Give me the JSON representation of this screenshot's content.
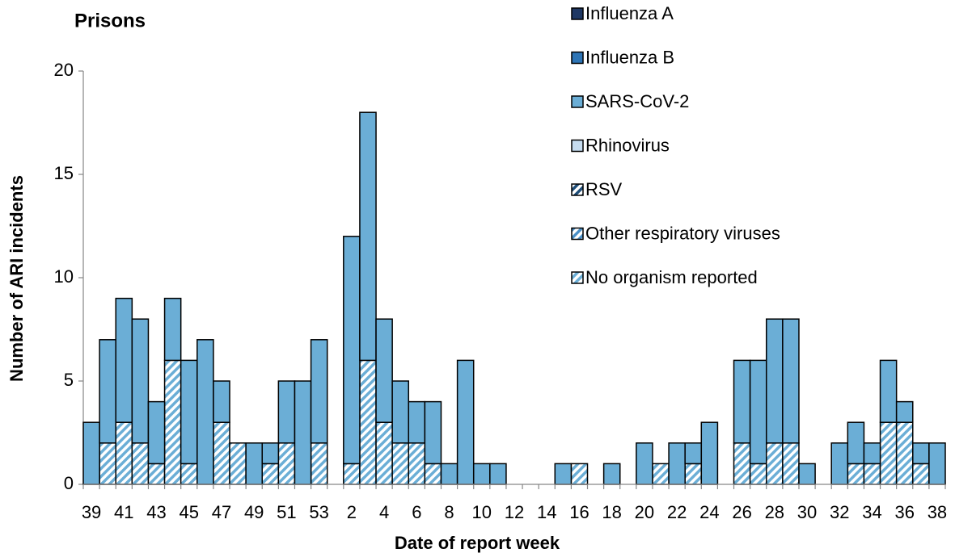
{
  "chart_data": {
    "type": "bar",
    "stacked": true,
    "title": "Prisons",
    "x_label": "Date of report week",
    "y_label": "Number of ARI incidents",
    "categories": [
      "39",
      null,
      "41",
      null,
      "43",
      null,
      "45",
      null,
      "47",
      null,
      "49",
      null,
      "51",
      null,
      "53",
      null,
      "2",
      null,
      "4",
      null,
      "6",
      null,
      "8",
      null,
      "10",
      null,
      "12",
      null,
      "14",
      null,
      "16",
      null,
      "18",
      null,
      "20",
      null,
      "22",
      null,
      "24",
      null,
      "26",
      null,
      "28",
      null,
      "30",
      null,
      "32",
      null,
      "34",
      null,
      "36",
      null,
      "38"
    ],
    "series": [
      {
        "name": "No organism reported",
        "color": "#6baed6",
        "pattern": "hatch",
        "values": [
          0,
          2,
          3,
          2,
          1,
          6,
          1,
          0,
          3,
          2,
          0,
          1,
          2,
          0,
          2,
          0,
          1,
          6,
          3,
          2,
          2,
          1,
          0,
          0,
          0,
          0,
          0,
          0,
          0,
          0,
          1,
          0,
          0,
          0,
          0,
          1,
          0,
          1,
          0,
          0,
          2,
          1,
          2,
          2,
          0,
          0,
          0,
          1,
          1,
          3,
          3,
          1,
          0
        ]
      },
      {
        "name": "Other respiratory viruses",
        "color": "#4a90c8",
        "pattern": "hatch",
        "values": [
          0,
          0,
          0,
          0,
          0,
          0,
          0,
          0,
          0,
          0,
          0,
          0,
          0,
          0,
          0,
          0,
          0,
          0,
          0,
          0,
          0,
          0,
          0,
          0,
          0,
          0,
          0,
          0,
          0,
          0,
          0,
          0,
          0,
          0,
          0,
          0,
          0,
          0,
          0,
          0,
          0,
          0,
          0,
          0,
          0,
          0,
          0,
          0,
          0,
          0,
          0,
          0,
          0
        ]
      },
      {
        "name": "RSV",
        "color": "#1f4e79",
        "pattern": "hatch",
        "values": [
          0,
          0,
          0,
          0,
          0,
          0,
          0,
          0,
          0,
          0,
          0,
          0,
          0,
          0,
          0,
          0,
          0,
          0,
          0,
          0,
          0,
          0,
          0,
          0,
          0,
          0,
          0,
          0,
          0,
          0,
          0,
          0,
          0,
          0,
          0,
          0,
          0,
          0,
          0,
          0,
          0,
          0,
          0,
          0,
          0,
          0,
          0,
          0,
          0,
          0,
          0,
          0,
          0
        ]
      },
      {
        "name": "Rhinovirus",
        "color": "#c6dcf0",
        "values": [
          0,
          0,
          0,
          0,
          0,
          0,
          0,
          0,
          0,
          0,
          0,
          0,
          0,
          0,
          0,
          0,
          0,
          0,
          0,
          0,
          0,
          0,
          0,
          0,
          0,
          0,
          0,
          0,
          0,
          0,
          0,
          0,
          0,
          0,
          0,
          0,
          0,
          0,
          0,
          0,
          0,
          0,
          0,
          0,
          0,
          0,
          0,
          0,
          0,
          0,
          0,
          0,
          0
        ]
      },
      {
        "name": "SARS-CoV-2",
        "color": "#6baed6",
        "values": [
          3,
          5,
          6,
          6,
          3,
          3,
          5,
          7,
          2,
          0,
          2,
          1,
          3,
          5,
          5,
          0,
          11,
          12,
          5,
          3,
          2,
          3,
          1,
          6,
          1,
          1,
          0,
          0,
          0,
          1,
          0,
          0,
          1,
          0,
          2,
          0,
          2,
          1,
          3,
          0,
          4,
          5,
          6,
          6,
          1,
          0,
          2,
          2,
          1,
          3,
          1,
          1,
          2
        ]
      },
      {
        "name": "Influenza B",
        "color": "#2e75b6",
        "values": [
          0,
          0,
          0,
          0,
          0,
          0,
          0,
          0,
          0,
          0,
          0,
          0,
          0,
          0,
          0,
          0,
          0,
          0,
          0,
          0,
          0,
          0,
          0,
          0,
          0,
          0,
          0,
          0,
          0,
          0,
          0,
          0,
          0,
          0,
          0,
          0,
          0,
          0,
          0,
          0,
          0,
          0,
          0,
          0,
          0,
          0,
          0,
          0,
          0,
          0,
          0,
          0,
          0
        ]
      },
      {
        "name": "Influenza A",
        "color": "#1f3864",
        "values": [
          0,
          0,
          0,
          0,
          0,
          0,
          0,
          0,
          0,
          0,
          0,
          0,
          0,
          0,
          0,
          0,
          0,
          0,
          0,
          0,
          0,
          0,
          0,
          0,
          0,
          0,
          0,
          0,
          0,
          0,
          0,
          0,
          0,
          0,
          0,
          0,
          0,
          0,
          0,
          0,
          0,
          0,
          0,
          0,
          0,
          0,
          0,
          0,
          0,
          0,
          0,
          0,
          0
        ]
      }
    ],
    "ylim": [
      0,
      20
    ],
    "yticks": [
      0,
      5,
      10,
      15,
      20
    ],
    "grid": false,
    "legend": "right"
  }
}
